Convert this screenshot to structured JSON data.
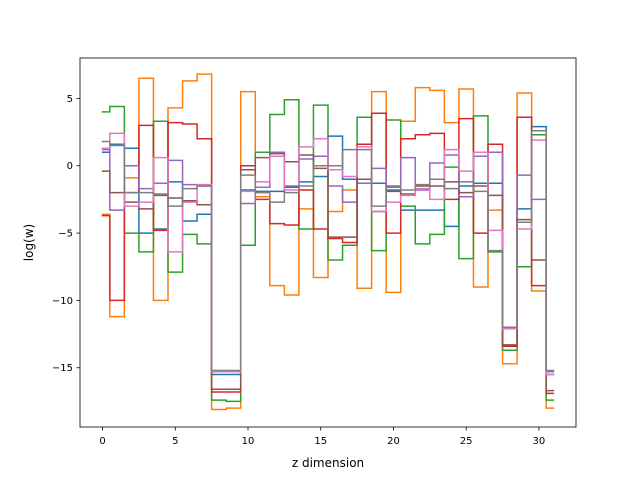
{
  "chart_data": {
    "type": "line",
    "step": "mid",
    "xlabel": "z dimension",
    "ylabel": "log(w)",
    "xlim": [
      -1.55,
      32.55
    ],
    "ylim": [
      -19.4,
      8.0
    ],
    "xticks": [
      0,
      5,
      10,
      15,
      20,
      25,
      30
    ],
    "yticks": [
      -15,
      -10,
      -5,
      0,
      5
    ],
    "x": [
      0,
      1,
      2,
      3,
      4,
      5,
      6,
      7,
      8,
      9,
      10,
      11,
      12,
      13,
      14,
      15,
      16,
      17,
      18,
      19,
      20,
      21,
      22,
      23,
      24,
      25,
      26,
      27,
      28,
      29,
      30,
      31
    ],
    "series": [
      {
        "color": "#1f77b4",
        "values": [
          1.0,
          1.6,
          1.3,
          -5.0,
          -4.7,
          -1.2,
          -4.1,
          -3.6,
          -15.5,
          -15.5,
          -1.8,
          -1.9,
          -1.9,
          -1.6,
          -1.2,
          -0.8,
          2.2,
          -1.0,
          -1.0,
          -1.3,
          -1.8,
          -3.3,
          -3.3,
          -3.3,
          -4.5,
          -1.5,
          -1.3,
          -1.3,
          -12.0,
          -3.2,
          2.9,
          -15.5
        ]
      },
      {
        "color": "#ff7f0e",
        "values": [
          -3.6,
          -11.2,
          -0.9,
          6.5,
          -10.0,
          4.3,
          6.3,
          6.8,
          -18.1,
          -18.0,
          5.5,
          -2.3,
          -8.9,
          -9.6,
          -3.2,
          -8.3,
          -3.4,
          -1.8,
          -9.1,
          5.5,
          -9.4,
          3.3,
          5.8,
          5.6,
          3.2,
          5.7,
          -9.0,
          -3.3,
          -14.7,
          5.4,
          -9.3,
          -18.0
        ]
      },
      {
        "color": "#2ca02c",
        "values": [
          4.0,
          4.4,
          -5.0,
          -6.4,
          3.3,
          -7.9,
          -5.1,
          -5.8,
          -17.4,
          -17.5,
          -5.9,
          1.0,
          3.8,
          4.9,
          -4.7,
          4.5,
          -7.0,
          -5.9,
          3.6,
          -6.3,
          3.4,
          -3.0,
          -5.8,
          -5.1,
          -0.1,
          -6.9,
          3.7,
          -6.4,
          -13.7,
          -7.5,
          2.3,
          -17.4
        ]
      },
      {
        "color": "#d62728",
        "values": [
          -3.7,
          -10.0,
          -2.0,
          3.0,
          -4.8,
          3.2,
          3.1,
          2.0,
          -16.8,
          -16.8,
          0.0,
          -2.5,
          -4.3,
          -4.4,
          -1.8,
          -4.7,
          -5.4,
          -5.7,
          1.6,
          3.9,
          -5.0,
          2.0,
          2.3,
          2.4,
          -2.5,
          3.5,
          -5.0,
          1.6,
          -13.4,
          3.6,
          -8.9,
          -16.9
        ]
      },
      {
        "color": "#9467bd",
        "values": [
          1.2,
          -3.3,
          0.0,
          -1.7,
          -1.3,
          0.4,
          -1.4,
          -1.5,
          -15.3,
          -15.3,
          -2.8,
          -1.6,
          1.0,
          -1.5,
          0.5,
          0.7,
          -1.5,
          -2.7,
          -1.3,
          -0.2,
          -1.6,
          0.6,
          -1.8,
          0.2,
          0.8,
          -2.3,
          0.7,
          1.0,
          -12.0,
          -0.7,
          -2.5,
          -15.3
        ]
      },
      {
        "color": "#8c564b",
        "values": [
          -0.4,
          -2.0,
          -2.7,
          -3.2,
          -2.2,
          -2.4,
          -2.6,
          -2.9,
          -16.6,
          -16.6,
          -0.3,
          0.6,
          0.9,
          0.3,
          0.8,
          -0.2,
          -5.3,
          -5.3,
          -1.0,
          -3.4,
          -1.9,
          -2.1,
          -1.5,
          -1.5,
          -1.2,
          -2.0,
          -1.5,
          -2.2,
          -13.3,
          -4.0,
          -7.0,
          -16.7
        ]
      },
      {
        "color": "#e377c2",
        "values": [
          1.3,
          2.4,
          -3.0,
          -2.7,
          0.6,
          -6.4,
          -2.7,
          -1.4,
          -15.3,
          -15.3,
          -1.9,
          -1.2,
          0.7,
          -1.8,
          1.4,
          2.0,
          -0.3,
          -0.8,
          1.4,
          -3.4,
          -2.7,
          -2.2,
          -1.7,
          -2.5,
          1.2,
          -0.4,
          1.0,
          -4.8,
          -12.1,
          -4.7,
          1.9,
          -15.5
        ]
      },
      {
        "color": "#7f7f7f",
        "values": [
          1.8,
          1.5,
          -2.0,
          -2.0,
          -2.1,
          -3.0,
          -1.7,
          -1.5,
          -15.2,
          -15.2,
          -0.7,
          -2.0,
          -2.7,
          -2.0,
          -1.5,
          0.0,
          0.0,
          1.2,
          1.2,
          -3.0,
          -1.5,
          -1.8,
          -1.4,
          -1.0,
          -1.7,
          -1.2,
          -1.9,
          -6.3,
          -12.0,
          -4.2,
          2.6,
          -15.2
        ]
      }
    ]
  }
}
